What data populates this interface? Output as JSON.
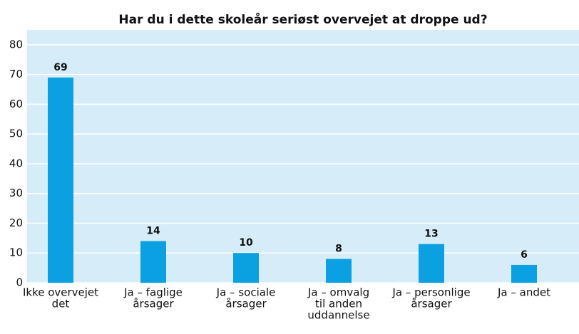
{
  "chart_data": {
    "type": "bar",
    "title": "Har du i dette skoleår seriøst overvejet at droppe ud?",
    "categories": [
      [
        "Ikke overvejet",
        "det"
      ],
      [
        "Ja – faglige",
        "årsager"
      ],
      [
        "Ja – sociale",
        "årsager"
      ],
      [
        "Ja –  omvalg",
        "til anden",
        "uddannelse"
      ],
      [
        "Ja – personlige",
        "årsager"
      ],
      [
        "Ja – andet"
      ]
    ],
    "values": [
      69,
      14,
      10,
      8,
      13,
      6
    ],
    "color": "#0aa0e2",
    "ylim": [
      0,
      85
    ],
    "yticks": [
      0,
      10,
      20,
      30,
      40,
      50,
      60,
      70,
      80
    ],
    "grid": true
  }
}
